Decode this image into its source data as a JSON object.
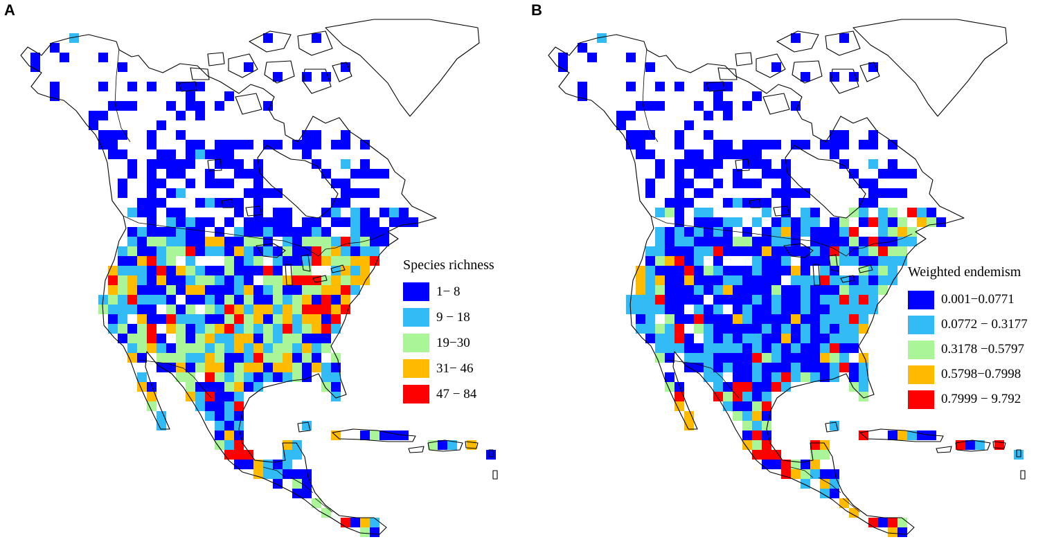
{
  "panels": [
    {
      "letter": "A",
      "legend": {
        "title": "Species richness",
        "classes": [
          {
            "label": "1− 8",
            "color": "#0000ff"
          },
          {
            "label": "9 − 18",
            "color": "#33bbf5"
          },
          {
            "label": "19−30",
            "color": "#aaf598"
          },
          {
            "label": "31− 46",
            "color": "#ffbb00"
          },
          {
            "label": "47 − 84",
            "color": "#ff0000"
          }
        ]
      }
    },
    {
      "letter": "B",
      "legend": {
        "title": "Weighted endemism",
        "classes": [
          {
            "label": "0.001−0.0771",
            "color": "#0000ff"
          },
          {
            "label": "0.0772 − 0.3177",
            "color": "#33bbf5"
          },
          {
            "label": "0.3178  −0.5797",
            "color": "#aaf598"
          },
          {
            "label": "0.5798−0.7998",
            "color": "#ffbb00"
          },
          {
            "label": "0.7999 − 9.792",
            "color": "#ff0000"
          }
        ]
      }
    }
  ]
}
